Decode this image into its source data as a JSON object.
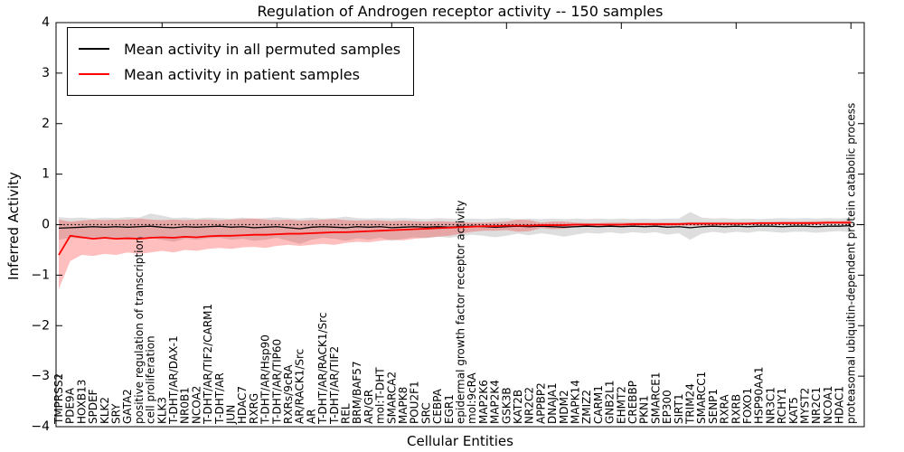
{
  "figure": {
    "title": "Regulation of Androgen receptor activity -- 150 samples",
    "xlabel": "Cellular Entities",
    "ylabel": "Inferred Activity",
    "legend": [
      {
        "label": "Mean activity in all permuted samples",
        "color": "#000000"
      },
      {
        "label": "Mean activity in patient samples",
        "color": "#ff0000"
      }
    ]
  },
  "chart_data": {
    "type": "line",
    "title": "Regulation of Androgen receptor activity -- 150 samples",
    "xlabel": "Cellular Entities",
    "ylabel": "Inferred Activity",
    "ylim": [
      -4,
      4
    ],
    "ytick_labels": [
      "4",
      "3",
      "2",
      "1",
      "0",
      "−1",
      "−2",
      "−3",
      "−4"
    ],
    "yticks": [
      4,
      3,
      2,
      1,
      0,
      -1,
      -2,
      -3,
      -4
    ],
    "grid": false,
    "legend_position": "upper left",
    "zero_line": {
      "y": 0,
      "style": "dotted",
      "color": "#000000"
    },
    "band_colors": {
      "permuted": "rgba(0,0,0,0.13)",
      "patient": "rgba(255,0,0,0.25)"
    },
    "categories": [
      "TMPRSS2",
      "PDE9A",
      "HOXB13",
      "SPDEF",
      "KLK2",
      "SRY",
      "GATA2",
      "positive regulation of transcription",
      "cell proliferation",
      "KLK3",
      "T-DHT/AR/DAX-1",
      "NR0B1",
      "NCOA2",
      "T-DHT/AR/TIF2/CARM1",
      "T-DHT/AR",
      "JUN",
      "HDAC7",
      "RXRG",
      "T-DHT/AR/Hsp90",
      "T-DHT/AR/TIP60",
      "RXRs/9cRA",
      "AR/RACK1/Src",
      "AR",
      "T-DHT/AR/RACK1/Src",
      "T-DHT/AR/TIF2",
      "REL",
      "BRM/BAF57",
      "AR/GR",
      "mol:T-DHT",
      "SMARCA2",
      "MAPK8",
      "POU2F1",
      "SRC",
      "CEBPA",
      "EGR1",
      "epidermal growth factor receptor activity",
      "mol:9cRA",
      "MAP2K6",
      "MAP2K4",
      "GSK3B",
      "KAT2B",
      "NR2C2",
      "APPBP2",
      "DNAJA1",
      "MDM2",
      "MAPK14",
      "ZMIZ2",
      "CARM1",
      "GNB2L1",
      "EHMT2",
      "CREBBP",
      "PKN1",
      "SMARCE1",
      "EP300",
      "SIRT1",
      "TRIM24",
      "SMARCC1",
      "SENP1",
      "RXRA",
      "RXRB",
      "FOXO1",
      "HSP90AA1",
      "NR3C1",
      "RCHY1",
      "KAT5",
      "MYST2",
      "NR2C1",
      "NCOA1",
      "HDAC1",
      "proteasomal ubiquitin-dependent protein catabolic process"
    ],
    "series": [
      {
        "name": "Mean activity in all permuted samples",
        "color": "#000000",
        "line_width": 1.3,
        "values": [
          -0.07,
          -0.06,
          -0.05,
          -0.04,
          -0.05,
          -0.04,
          -0.05,
          -0.04,
          -0.03,
          -0.05,
          -0.06,
          -0.04,
          -0.05,
          -0.04,
          -0.03,
          -0.05,
          -0.04,
          -0.06,
          -0.05,
          -0.04,
          -0.06,
          -0.08,
          -0.05,
          -0.04,
          -0.05,
          -0.06,
          -0.04,
          -0.05,
          -0.04,
          -0.06,
          -0.05,
          -0.04,
          -0.05,
          -0.04,
          -0.05,
          -0.04,
          -0.03,
          -0.04,
          -0.05,
          -0.04,
          -0.03,
          -0.04,
          -0.03,
          -0.04,
          -0.05,
          -0.04,
          -0.03,
          -0.04,
          -0.03,
          -0.04,
          -0.03,
          -0.04,
          -0.03,
          -0.05,
          -0.04,
          -0.06,
          -0.04,
          -0.03,
          -0.04,
          -0.03,
          -0.04,
          -0.03,
          -0.03,
          -0.04,
          -0.03,
          -0.03,
          -0.04,
          -0.03,
          -0.03,
          -0.02
        ],
        "upper": [
          0.15,
          0.13,
          0.14,
          0.12,
          0.14,
          0.13,
          0.15,
          0.14,
          0.22,
          0.18,
          0.13,
          0.14,
          0.12,
          0.14,
          0.13,
          0.12,
          0.14,
          0.12,
          0.13,
          0.15,
          0.13,
          0.12,
          0.14,
          0.12,
          0.13,
          0.16,
          0.13,
          0.12,
          0.13,
          0.12,
          0.13,
          0.12,
          0.11,
          0.13,
          0.12,
          0.11,
          0.12,
          0.11,
          0.12,
          0.13,
          0.11,
          0.12,
          0.11,
          0.12,
          0.11,
          0.12,
          0.11,
          0.12,
          0.11,
          0.12,
          0.11,
          0.12,
          0.11,
          0.12,
          0.12,
          0.25,
          0.14,
          0.12,
          0.13,
          0.11,
          0.12,
          0.11,
          0.12,
          0.13,
          0.12,
          0.13,
          0.12,
          0.13,
          0.12,
          0.14
        ],
        "lower": [
          -0.3,
          -0.26,
          -0.28,
          -0.25,
          -0.28,
          -0.26,
          -0.3,
          -0.28,
          -0.26,
          -0.3,
          -0.34,
          -0.28,
          -0.3,
          -0.27,
          -0.26,
          -0.3,
          -0.28,
          -0.32,
          -0.3,
          -0.26,
          -0.32,
          -0.38,
          -0.3,
          -0.26,
          -0.28,
          -0.32,
          -0.27,
          -0.3,
          -0.26,
          -0.32,
          -0.28,
          -0.25,
          -0.27,
          -0.24,
          -0.26,
          -0.23,
          -0.2,
          -0.22,
          -0.25,
          -0.22,
          -0.18,
          -0.21,
          -0.17,
          -0.2,
          -0.24,
          -0.2,
          -0.16,
          -0.18,
          -0.15,
          -0.18,
          -0.15,
          -0.17,
          -0.15,
          -0.2,
          -0.17,
          -0.3,
          -0.18,
          -0.14,
          -0.17,
          -0.14,
          -0.16,
          -0.13,
          -0.14,
          -0.16,
          -0.14,
          -0.14,
          -0.16,
          -0.14,
          -0.13,
          -0.15
        ]
      },
      {
        "name": "Mean activity in patient samples",
        "color": "#ff0000",
        "line_width": 1.8,
        "values": [
          -0.6,
          -0.22,
          -0.25,
          -0.28,
          -0.26,
          -0.28,
          -0.27,
          -0.28,
          -0.26,
          -0.25,
          -0.26,
          -0.24,
          -0.25,
          -0.23,
          -0.22,
          -0.22,
          -0.21,
          -0.2,
          -0.2,
          -0.19,
          -0.18,
          -0.18,
          -0.17,
          -0.16,
          -0.15,
          -0.15,
          -0.14,
          -0.13,
          -0.12,
          -0.11,
          -0.1,
          -0.09,
          -0.08,
          -0.07,
          -0.06,
          -0.05,
          -0.04,
          -0.03,
          -0.03,
          -0.02,
          -0.02,
          -0.02,
          -0.01,
          -0.01,
          -0.01,
          0.0,
          0.0,
          0.0,
          0.0,
          0.0,
          0.01,
          0.01,
          0.01,
          0.01,
          0.01,
          0.02,
          0.02,
          0.02,
          0.02,
          0.02,
          0.02,
          0.03,
          0.03,
          0.03,
          0.03,
          0.03,
          0.03,
          0.04,
          0.04,
          0.04
        ],
        "upper": [
          0.1,
          0.06,
          0.08,
          0.1,
          0.09,
          0.1,
          0.1,
          0.12,
          0.1,
          0.09,
          0.1,
          0.09,
          0.1,
          0.1,
          0.09,
          0.1,
          0.11,
          0.12,
          0.1,
          0.09,
          0.1,
          0.08,
          0.09,
          0.1,
          0.11,
          0.09,
          0.08,
          0.09,
          0.08,
          0.07,
          0.08,
          0.07,
          0.06,
          0.07,
          0.06,
          0.05,
          0.04,
          0.04,
          0.05,
          0.06,
          0.1,
          0.09,
          0.04,
          0.06,
          0.06,
          0.04,
          0.03,
          0.03,
          0.04,
          0.04,
          0.04,
          0.04,
          0.04,
          0.04,
          0.04,
          0.05,
          0.05,
          0.05,
          0.05,
          0.05,
          0.05,
          0.05,
          0.05,
          0.06,
          0.06,
          0.06,
          0.07,
          0.07,
          0.07,
          0.08
        ],
        "lower": [
          -1.28,
          -0.72,
          -0.6,
          -0.62,
          -0.58,
          -0.6,
          -0.55,
          -0.58,
          -0.55,
          -0.52,
          -0.55,
          -0.5,
          -0.52,
          -0.48,
          -0.46,
          -0.48,
          -0.45,
          -0.44,
          -0.46,
          -0.42,
          -0.4,
          -0.42,
          -0.4,
          -0.38,
          -0.4,
          -0.36,
          -0.34,
          -0.35,
          -0.32,
          -0.3,
          -0.31,
          -0.28,
          -0.26,
          -0.24,
          -0.22,
          -0.18,
          -0.14,
          -0.12,
          -0.12,
          -0.11,
          -0.14,
          -0.13,
          -0.07,
          -0.09,
          -0.08,
          -0.05,
          -0.04,
          -0.04,
          -0.04,
          -0.04,
          -0.03,
          -0.03,
          -0.03,
          -0.03,
          -0.02,
          -0.02,
          -0.02,
          -0.02,
          -0.02,
          -0.01,
          -0.01,
          -0.01,
          0.0,
          0.0,
          0.0,
          0.0,
          0.0,
          0.01,
          0.01,
          0.0
        ]
      }
    ]
  }
}
